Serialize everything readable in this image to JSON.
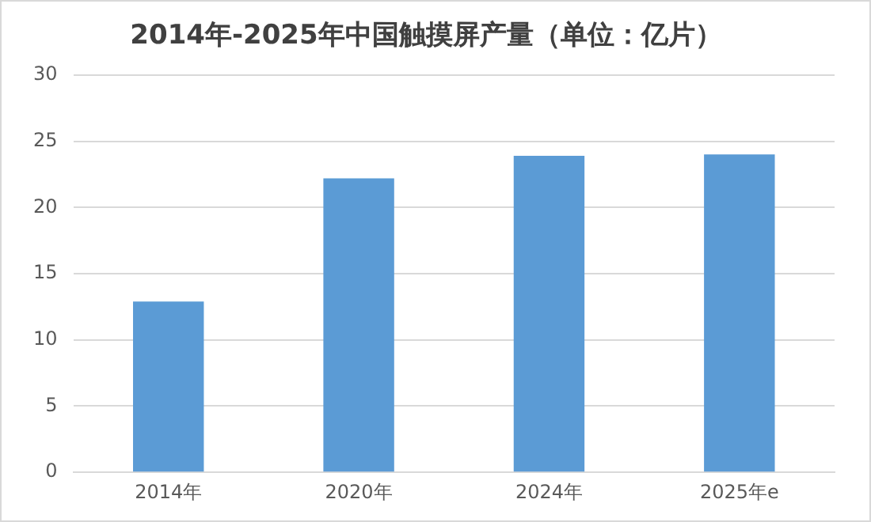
{
  "chart_data": {
    "type": "bar",
    "title": "2014年-2025年中国触摸屏产量（单位：亿片）",
    "categories": [
      "2014年",
      "2020年",
      "2024年",
      "2025年e"
    ],
    "values": [
      12.9,
      22.2,
      23.9,
      24.0
    ],
    "color": "#5b9bd5",
    "ylim": [
      0,
      30
    ],
    "yticks": [
      0,
      5,
      10,
      15,
      20,
      25,
      30
    ],
    "grid": "y",
    "legend": false
  }
}
